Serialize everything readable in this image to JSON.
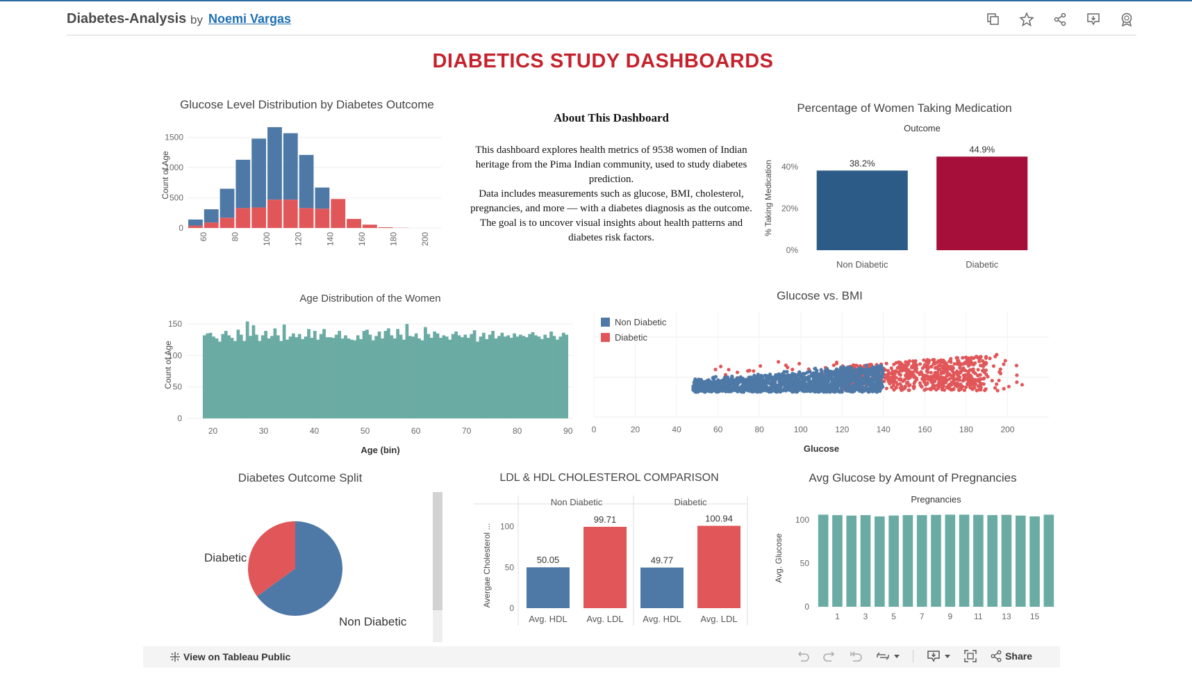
{
  "header": {
    "title": "Diabetes-Analysis",
    "by": "by",
    "author": "Noemi Vargas",
    "icons": [
      "copy-icon",
      "star-icon",
      "share-nodes-icon",
      "comment-icon",
      "badge-icon"
    ]
  },
  "dashboard": {
    "title": "DIABETICS STUDY DASHBOARDS"
  },
  "about": {
    "heading": "About This Dashboard",
    "p1": "This dashboard explores health metrics of 9538 women of Indian heritage from the Pima Indian community, used to study diabetes prediction.",
    "p2": "Data includes measurements such as glucose, BMI, cholesterol, pregnancies, and more — with a diabetes diagnosis as the outcome.",
    "p3": "The goal is to uncover visual insights about health patterns and diabetes risk factors."
  },
  "colors": {
    "blue": "#4e79a7",
    "red": "#e15759",
    "teal": "#6aaba3",
    "dark_blue": "#2c5b87",
    "crimson": "#a50f3a",
    "title_red": "#c4232e"
  },
  "chart_data": [
    {
      "id": "glucose_dist",
      "type": "bar",
      "stacked": true,
      "title": "Glucose Level Distribution by Diabetes Outcome",
      "ylabel": "Count of Age",
      "ylim": [
        0,
        1750
      ],
      "yticks": [
        0,
        500,
        1000,
        1500
      ],
      "x": [
        50,
        60,
        70,
        80,
        90,
        100,
        110,
        120,
        130,
        140,
        150,
        160,
        170,
        180,
        190
      ],
      "xticks": [
        60,
        80,
        100,
        120,
        140,
        160,
        180,
        200
      ],
      "series": [
        {
          "name": "Non Diabetic",
          "color": "#4e79a7",
          "values": [
            100,
            220,
            480,
            800,
            1140,
            1200,
            1100,
            880,
            350,
            0,
            0,
            0,
            0,
            0,
            0
          ]
        },
        {
          "name": "Diabetic",
          "color": "#e15759",
          "values": [
            40,
            90,
            170,
            330,
            340,
            470,
            470,
            330,
            320,
            480,
            150,
            55,
            12,
            3,
            0
          ]
        }
      ]
    },
    {
      "id": "medication",
      "type": "bar",
      "title": "Percentage of Women Taking Medication",
      "header": "Outcome",
      "ylabel": "% Taking Medication",
      "ylim": [
        0,
        0.5
      ],
      "yticks": [
        "0%",
        "20%",
        "40%"
      ],
      "categories": [
        "Non Diabetic",
        "Diabetic"
      ],
      "values": [
        0.382,
        0.449
      ],
      "labels": [
        "38.2%",
        "44.9%"
      ],
      "colors": [
        "#2c5b87",
        "#a50f3a"
      ]
    },
    {
      "id": "age_dist",
      "type": "bar",
      "title": "Age Distribution of the Women",
      "xlabel": "Age (bin)",
      "ylabel": "Count of Age",
      "ylim": [
        0,
        170
      ],
      "yticks": [
        0,
        50,
        100,
        150
      ],
      "xlim": [
        15,
        91
      ],
      "xticks": [
        20,
        30,
        40,
        50,
        60,
        70,
        80,
        90
      ],
      "x_start": 18,
      "values": [
        132,
        135,
        136,
        130,
        127,
        122,
        134,
        139,
        132,
        128,
        123,
        141,
        133,
        123,
        154,
        131,
        148,
        133,
        123,
        132,
        139,
        127,
        131,
        143,
        132,
        123,
        149,
        125,
        130,
        135,
        129,
        134,
        126,
        130,
        142,
        128,
        139,
        125,
        134,
        142,
        129,
        129,
        128,
        133,
        139,
        127,
        132,
        127,
        125,
        124,
        132,
        126,
        139,
        141,
        133,
        124,
        131,
        138,
        127,
        139,
        143,
        132,
        127,
        142,
        133,
        125,
        150,
        131,
        130,
        135,
        127,
        124,
        145,
        134,
        128,
        138,
        135,
        128,
        132,
        130,
        125,
        134,
        138,
        132,
        129,
        133,
        128,
        134,
        140,
        122,
        130,
        136,
        126,
        133,
        139,
        127,
        131,
        136,
        130,
        132,
        128,
        135,
        130,
        133,
        131,
        129,
        134,
        137,
        132,
        130,
        126,
        133,
        128,
        138,
        131,
        125,
        130,
        136,
        133
      ]
    },
    {
      "id": "glucose_bmi",
      "type": "scatter",
      "title": "Glucose vs. BMI",
      "xlabel": "Glucose",
      "xlim": [
        0,
        220
      ],
      "xticks": [
        0,
        20,
        40,
        60,
        80,
        100,
        120,
        140,
        160,
        180,
        200
      ],
      "legend": {
        "position": "top-left",
        "entries": [
          {
            "name": "Non Diabetic",
            "color": "#4e79a7"
          },
          {
            "name": "Diabetic",
            "color": "#e15759"
          }
        ]
      },
      "series": [
        {
          "name": "Non Diabetic",
          "color": "#4e79a7",
          "x_range": [
            48,
            140
          ]
        },
        {
          "name": "Diabetic",
          "color": "#e15759",
          "x_range": [
            50,
            208
          ]
        }
      ]
    },
    {
      "id": "outcome_split",
      "type": "pie",
      "title": "Diabetes Outcome Split",
      "slices": [
        {
          "name": "Non Diabetic",
          "value": 0.65,
          "color": "#4e79a7"
        },
        {
          "name": "Diabetic",
          "value": 0.35,
          "color": "#e15759"
        }
      ]
    },
    {
      "id": "cholesterol",
      "type": "bar",
      "title": "LDL & HDL CHOLESTEROL COMPARISON",
      "ylabel": "Avergae Cholesterol ...",
      "ylim": [
        0,
        115
      ],
      "yticks": [
        0,
        50,
        100
      ],
      "groups": [
        {
          "name": "Non Diabetic",
          "categories": [
            "Avg. HDL",
            "Avg. LDL"
          ],
          "values": [
            50.05,
            99.71
          ],
          "labels": [
            "50.05",
            "99.71"
          ]
        },
        {
          "name": "Diabetic",
          "categories": [
            "Avg. HDL",
            "Avg. LDL"
          ],
          "values": [
            49.77,
            100.94
          ],
          "labels": [
            "49.77",
            "100.94"
          ]
        }
      ],
      "colors": [
        "#4e79a7",
        "#e15759"
      ]
    },
    {
      "id": "preg_glucose",
      "type": "bar",
      "title": "Avg Glucose by Amount of Pregnancies",
      "header": "Pregnancies",
      "ylabel": "Avg. Glucose",
      "ylim": [
        0,
        112
      ],
      "yticks": [
        0,
        50,
        100
      ],
      "categories": [
        0,
        1,
        2,
        3,
        4,
        5,
        6,
        7,
        8,
        9,
        10,
        11,
        12,
        13,
        14,
        15,
        16
      ],
      "xticks": [
        1,
        3,
        5,
        7,
        9,
        11,
        13,
        15
      ],
      "values": [
        106,
        105.5,
        105,
        105.5,
        104,
        105,
        105.5,
        105.5,
        105.8,
        106,
        106,
        105.8,
        105.5,
        105.8,
        105,
        104,
        106
      ]
    }
  ],
  "footer": {
    "view_label": "View on Tableau Public",
    "share_label": "Share"
  }
}
